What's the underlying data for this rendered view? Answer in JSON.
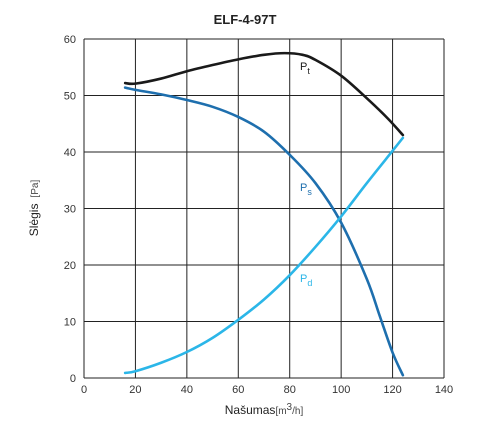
{
  "chart_data": {
    "type": "line",
    "title": "ELF-4-97T",
    "xlabel": "Našumas",
    "xunit_base": "[m",
    "xunit_sup": "3",
    "xunit_end": "/h]",
    "ylabel": "Slėgis",
    "yunit": "[Pa]",
    "xlim": [
      0,
      140
    ],
    "ylim": [
      0,
      60
    ],
    "xticks": [
      0,
      20,
      40,
      60,
      80,
      100,
      120,
      140
    ],
    "yticks": [
      0,
      10,
      20,
      30,
      40,
      50,
      60
    ],
    "grid": true,
    "series": [
      {
        "name": "P",
        "sub": "t",
        "color": "#1a1a1a",
        "x": [
          16,
          20,
          30,
          40,
          50,
          60,
          70,
          78,
          85,
          90,
          100,
          110,
          118,
          124
        ],
        "y": [
          52.2,
          52.1,
          53,
          54.3,
          55.4,
          56.4,
          57.2,
          57.5,
          57.2,
          56.3,
          53.5,
          49.5,
          46,
          43
        ]
      },
      {
        "name": "P",
        "sub": "s",
        "color": "#1e6fae",
        "x": [
          16,
          20,
          30,
          40,
          50,
          60,
          70,
          80,
          90,
          100,
          110,
          115,
          120,
          124
        ],
        "y": [
          51.4,
          51,
          50.2,
          49.2,
          48,
          46.2,
          43.6,
          39.5,
          34.5,
          27.5,
          17.5,
          11,
          4.5,
          0.5
        ]
      },
      {
        "name": "P",
        "sub": "d",
        "color": "#2bb6e8",
        "x": [
          16,
          20,
          30,
          40,
          50,
          60,
          70,
          80,
          90,
          100,
          110,
          120,
          124
        ],
        "y": [
          0.9,
          1.2,
          2.7,
          4.6,
          7.1,
          10.3,
          13.9,
          18.2,
          23.2,
          28.6,
          34.5,
          40.2,
          42.5
        ]
      }
    ]
  }
}
